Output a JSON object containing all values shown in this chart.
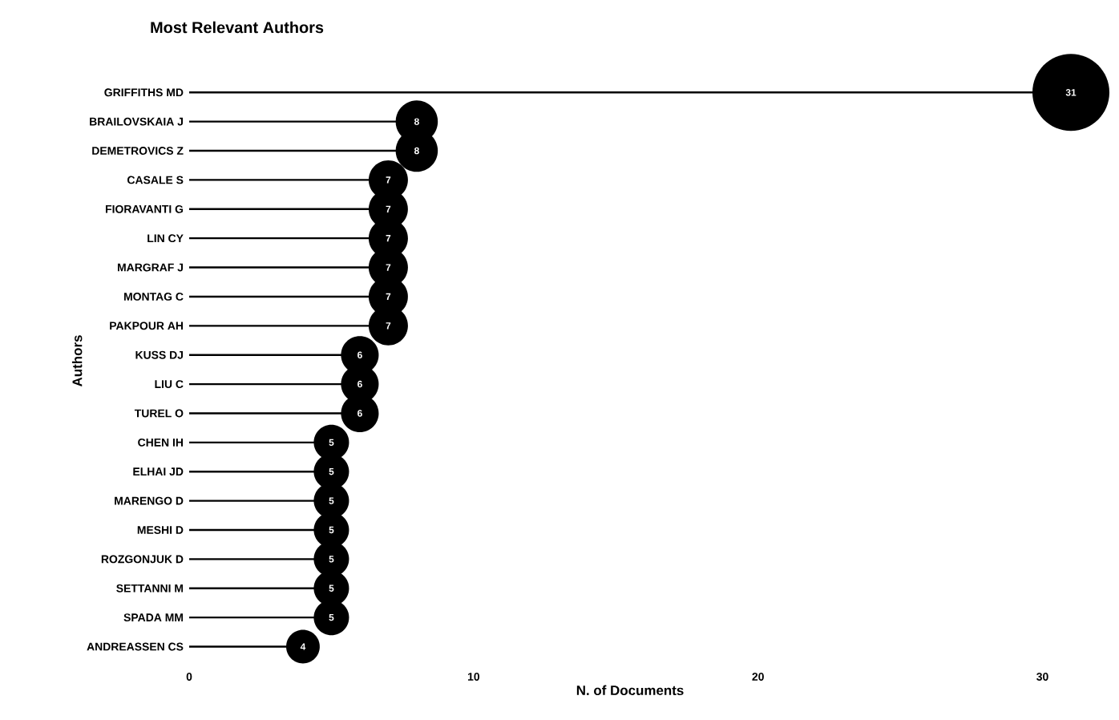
{
  "chart_data": {
    "type": "lollipop",
    "title": "Most Relevant Authors",
    "xlabel": "N. of Documents",
    "ylabel": "Authors",
    "categories": [
      "GRIFFITHS MD",
      "BRAILOVSKAIA J",
      "DEMETROVICS Z",
      "CASALE S",
      "FIORAVANTI G",
      "LIN CY",
      "MARGRAF J",
      "MONTAG C",
      "PAKPOUR AH",
      "KUSS DJ",
      "LIU C",
      "TUREL O",
      "CHEN IH",
      "ELHAI JD",
      "MARENGO D",
      "MESHI D",
      "ROZGONJUK D",
      "SETTANNI M",
      "SPADA MM",
      "ANDREASSEN CS"
    ],
    "values": [
      31,
      8,
      8,
      7,
      7,
      7,
      7,
      7,
      7,
      6,
      6,
      6,
      5,
      5,
      5,
      5,
      5,
      5,
      5,
      4
    ],
    "sizes": [
      1,
      0.3,
      0.3,
      0.26,
      0.26,
      0.26,
      0.26,
      0.26,
      0.26,
      0.24,
      0.24,
      0.24,
      0.21,
      0.21,
      0.21,
      0.21,
      0.21,
      0.21,
      0.21,
      0.19
    ],
    "color": "#000000",
    "data_labels": true,
    "orientation": "horizontal",
    "xlim": [
      0,
      31
    ],
    "xticks": [
      0,
      10,
      20,
      30
    ]
  }
}
